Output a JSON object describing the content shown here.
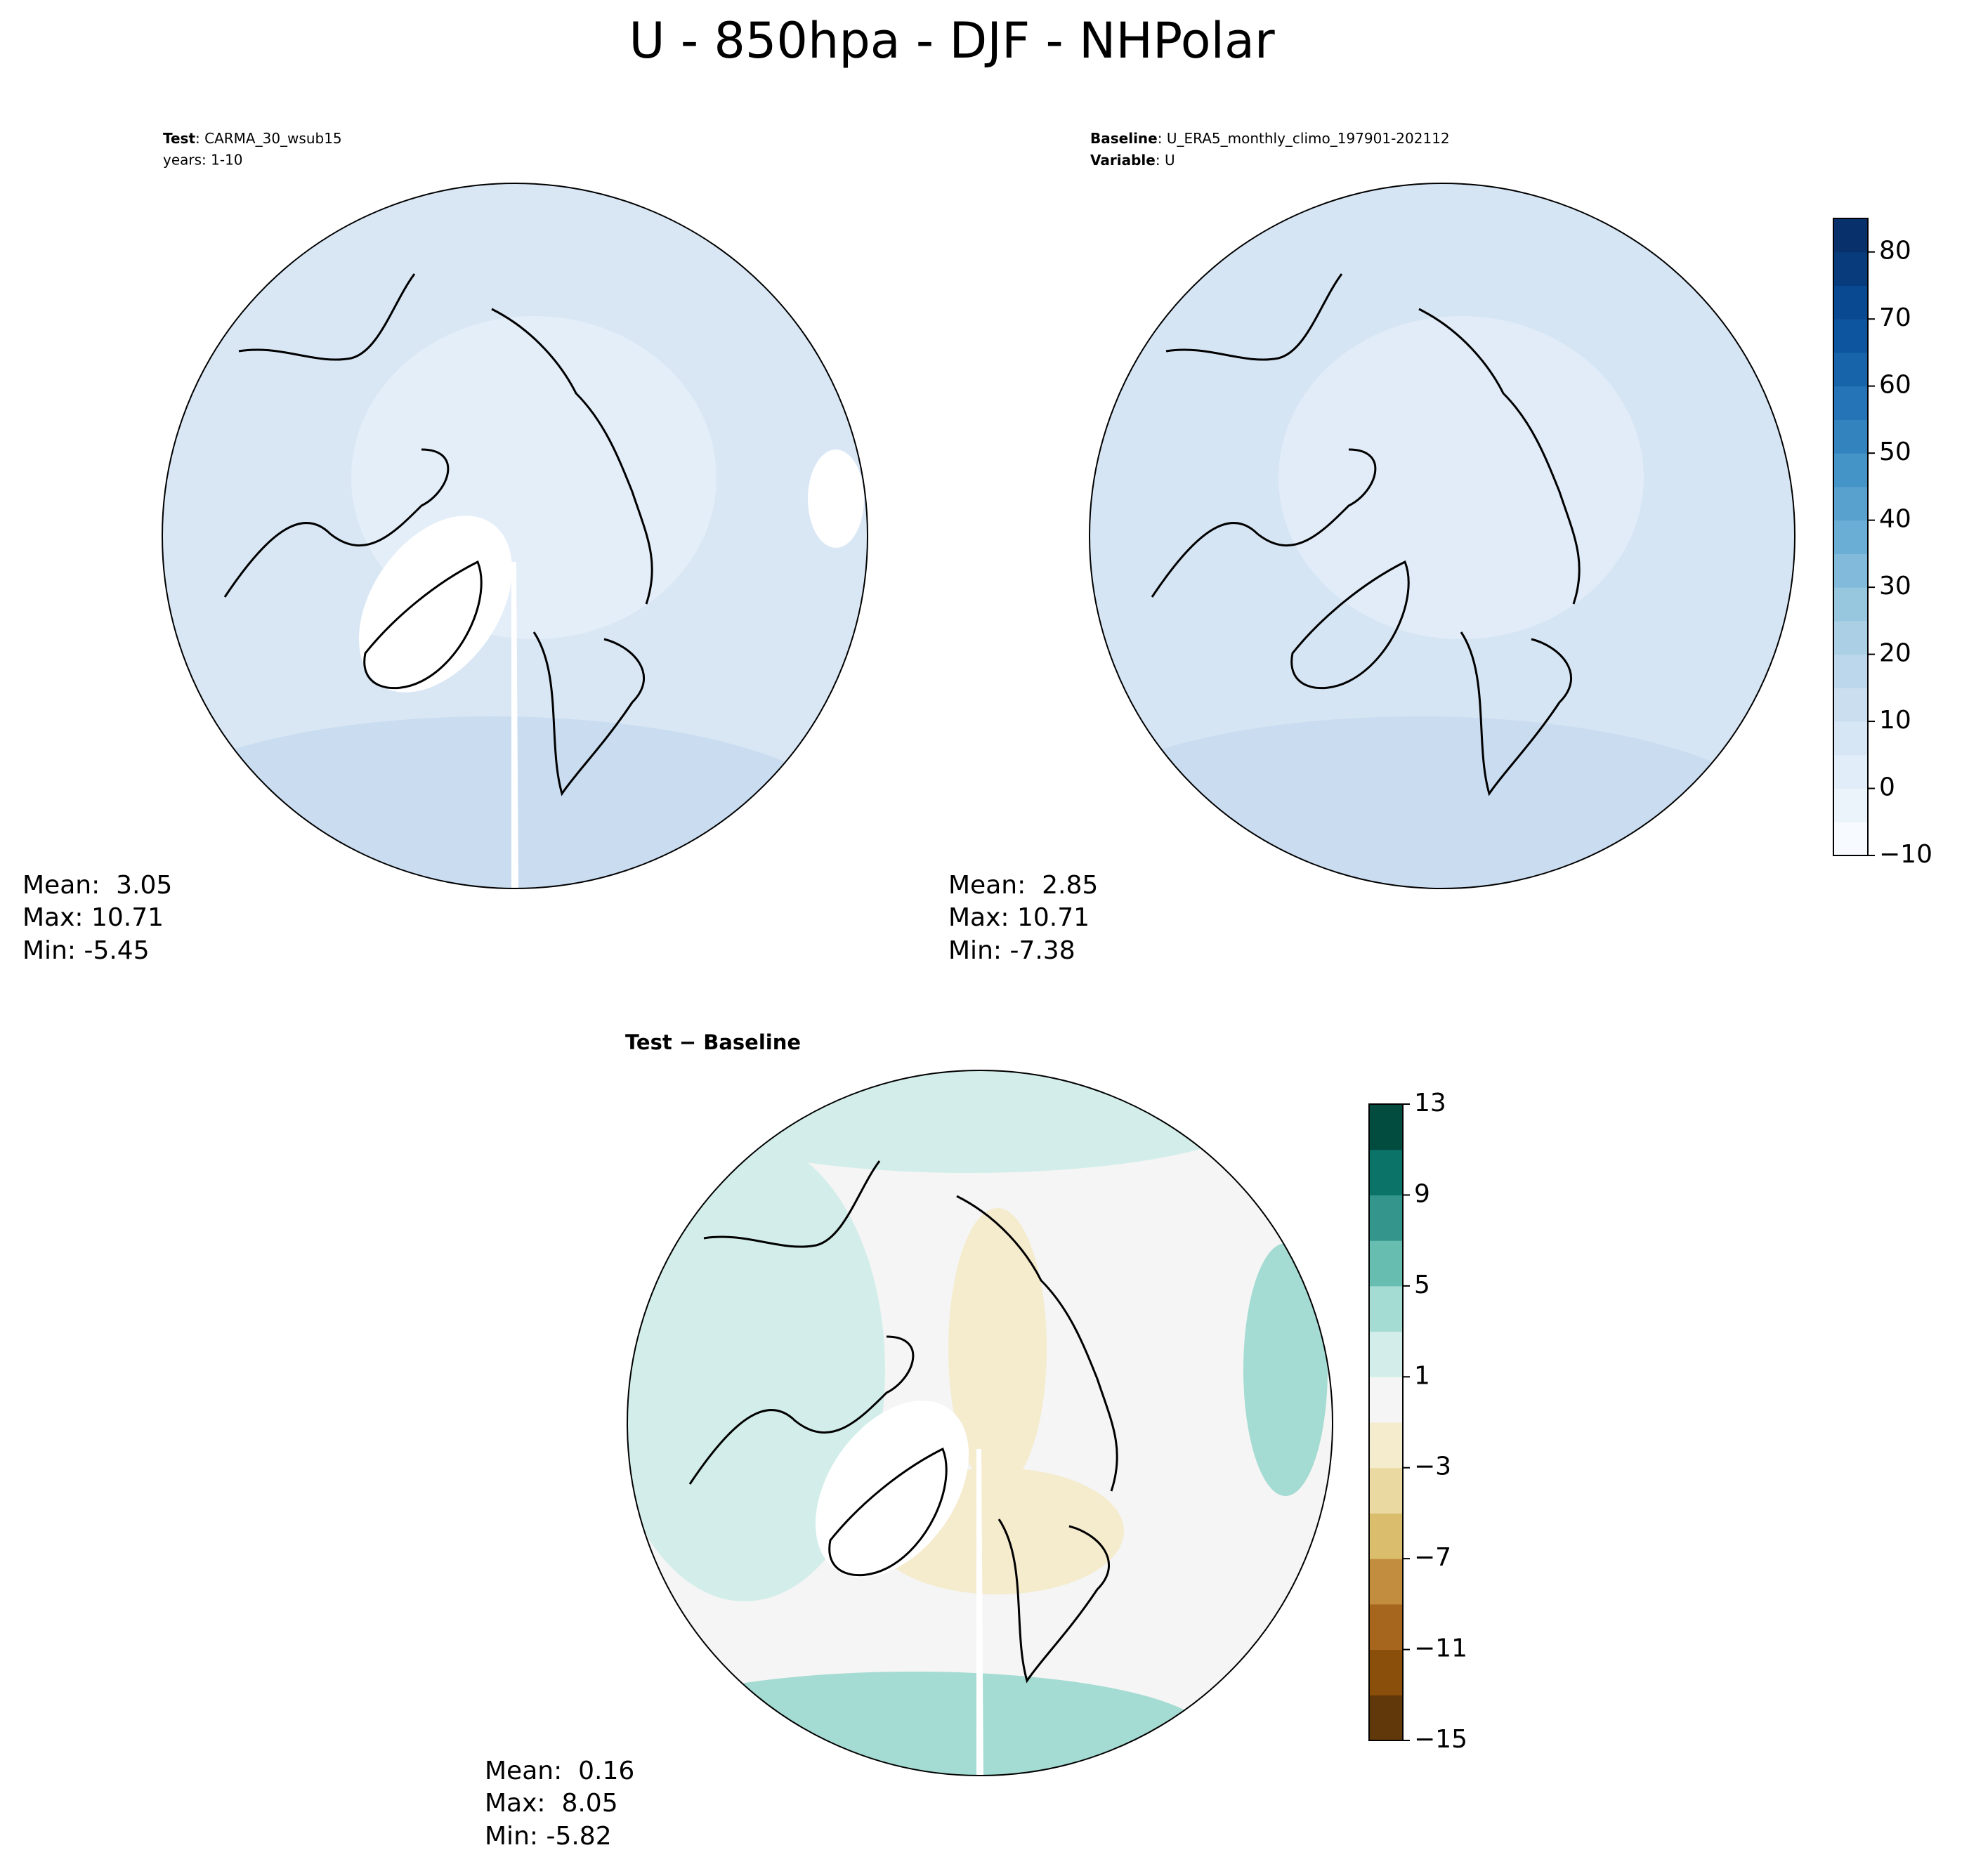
{
  "title": "U - 850hpa - DJF - NHPolar",
  "panels": [
    {
      "header": [
        {
          "key": "Test",
          "text": ": CARMA_30_wsub15"
        },
        {
          "text": "years: 1-10"
        }
      ],
      "stats": [
        "Mean:  3.05",
        "Max: 10.71",
        "Min: -5.45"
      ]
    },
    {
      "header": [
        {
          "key": "Baseline",
          "text": ": U_ERA5_monthly_climo_197901-202112"
        },
        {
          "key": "Variable",
          "text": ": U"
        }
      ],
      "stats": [
        "Mean:  2.85",
        "Max: 10.71",
        "Min: -7.38"
      ]
    },
    {
      "title": "Test − Baseline",
      "stats": [
        "Mean:  0.16",
        "Max:  8.05",
        "Min: -5.82"
      ]
    }
  ],
  "colorbars": [
    {
      "ylim": [
        -10,
        85
      ],
      "yticks": [
        {
          "value": -10,
          "label": "−10"
        },
        0,
        10,
        20,
        30,
        40,
        50,
        60,
        70,
        80
      ],
      "colors": [
        "#f7fbff",
        "#ebf3fb",
        "#e1edf8",
        "#d6e6f4",
        "#cadef0",
        "#bcd7eb",
        "#abd0e6",
        "#97c6df",
        "#81badb",
        "#6aaed6",
        "#58a1cf",
        "#4594c7",
        "#3383be",
        "#2474b7",
        "#1764ab",
        "#0d559f",
        "#084991",
        "#083b7c",
        "#08306b"
      ]
    },
    {
      "ylim": [
        -15,
        13
      ],
      "yticks": [
        {
          "value": -15,
          "label": "−15"
        },
        {
          "value": -11,
          "label": "−11"
        },
        {
          "value": -7,
          "label": "−7"
        },
        {
          "value": -3,
          "label": "−3"
        },
        1,
        5,
        9,
        13
      ],
      "colors": [
        "#613809",
        "#8a4f0a",
        "#a7661d",
        "#c38d3f",
        "#dbbd6e",
        "#ebd9a2",
        "#f5ebcd",
        "#f4f5f4",
        "#d3eeea",
        "#a4dbd2",
        "#67bdb0",
        "#33958c",
        "#0b7367",
        "#024b3f"
      ]
    }
  ]
}
